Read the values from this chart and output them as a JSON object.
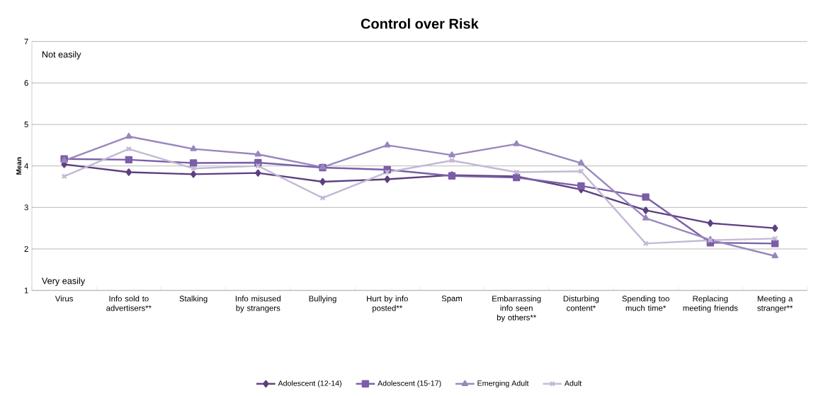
{
  "chart_data": {
    "type": "line",
    "title": "Control over Risk",
    "ylabel": "Mean",
    "categories": [
      "Virus",
      "Info sold to advertisers**",
      "Stalking",
      "Info misused by strangers",
      "Bullying",
      "Hurt by info posted**",
      "Spam",
      "Embarrassing info seen by others**",
      "Disturbing content*",
      "Spending too much time*",
      "Replacing meeting friends",
      "Meeting a stranger**"
    ],
    "series": [
      {
        "name": "Adolescent (12-14)",
        "color": "#5c3f80",
        "marker": "diamond",
        "values": [
          4.04,
          3.85,
          3.8,
          3.83,
          3.62,
          3.68,
          3.78,
          3.75,
          3.43,
          2.93,
          2.62,
          2.5
        ]
      },
      {
        "name": "Adolescent (15-17)",
        "color": "#7b5ea7",
        "marker": "square",
        "values": [
          4.17,
          4.15,
          4.07,
          4.08,
          3.96,
          3.91,
          3.76,
          3.72,
          3.52,
          3.25,
          2.15,
          2.13
        ]
      },
      {
        "name": "Emerging Adult",
        "color": "#9a86bd",
        "marker": "triangle",
        "values": [
          4.13,
          4.71,
          4.41,
          4.28,
          3.97,
          4.5,
          4.26,
          4.53,
          4.07,
          2.74,
          2.22,
          1.83
        ]
      },
      {
        "name": "Adult",
        "color": "#c3b9d6",
        "marker": "cross",
        "values": [
          3.75,
          4.41,
          3.94,
          4.0,
          3.23,
          3.85,
          4.13,
          3.85,
          3.87,
          2.13,
          2.21,
          2.25
        ]
      }
    ],
    "annotations": [
      "Not easily",
      "Very easily"
    ],
    "ylim": [
      1,
      7
    ],
    "yticks": [
      1,
      2,
      3,
      4,
      5,
      6,
      7
    ],
    "grid": "y",
    "legend": "bottom",
    "line_style": "solid"
  }
}
